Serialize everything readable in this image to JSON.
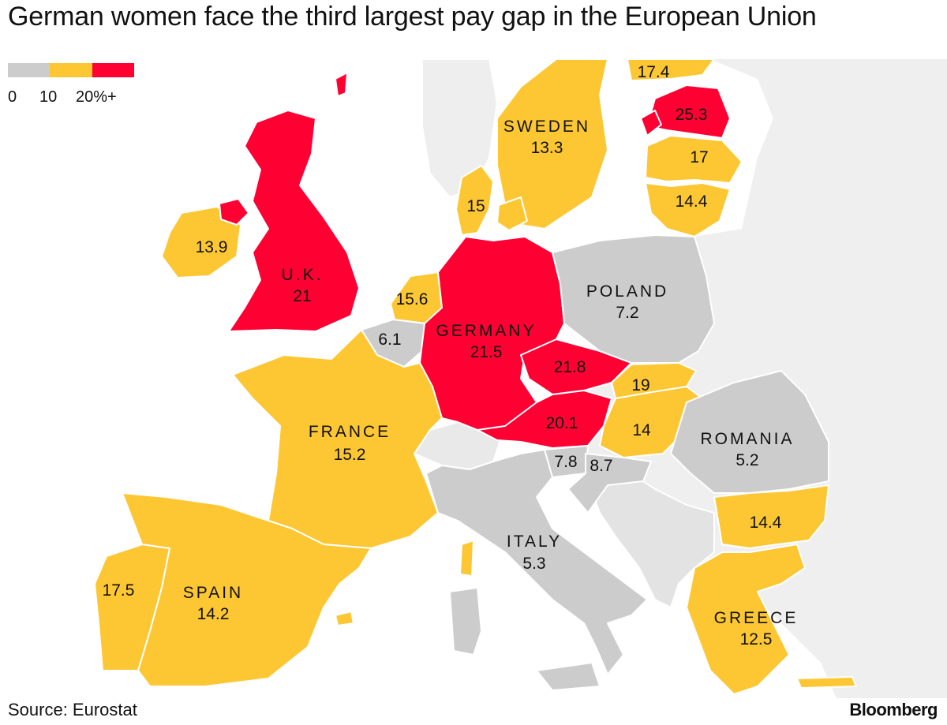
{
  "title": "German women face the third largest pay gap in the European Union",
  "legend": {
    "colors": [
      "#cccccc",
      "#fdc734",
      "#ff0033"
    ],
    "labels": [
      "0",
      "10",
      "20%+"
    ]
  },
  "map_colors": {
    "background": "#efefef",
    "low": "#cccccc",
    "mid": "#fdc734",
    "high": "#ff0033",
    "border": "#ffffff"
  },
  "countries": {
    "finland": {
      "value": "17.4"
    },
    "sweden": {
      "name": "SWEDEN",
      "value": "13.3"
    },
    "estonia": {
      "value": "25.3"
    },
    "latvia": {
      "value": "17"
    },
    "lithuania": {
      "value": "14.4"
    },
    "denmark": {
      "value": "15"
    },
    "ireland": {
      "value": "13.9"
    },
    "uk": {
      "name": "U.K.",
      "value": "21"
    },
    "netherlands": {
      "value": "15.6"
    },
    "belgium": {
      "value": "6.1"
    },
    "germany": {
      "name": "GERMANY",
      "value": "21.5"
    },
    "poland": {
      "name": "POLAND",
      "value": "7.2"
    },
    "czechia": {
      "value": "21.8"
    },
    "slovakia": {
      "value": "19"
    },
    "austria": {
      "value": "20.1"
    },
    "hungary": {
      "value": "14"
    },
    "romania": {
      "name": "ROMANIA",
      "value": "5.2"
    },
    "france": {
      "name": "FRANCE",
      "value": "15.2"
    },
    "slovenia": {
      "value": "7.8"
    },
    "croatia": {
      "value": "8.7"
    },
    "bulgaria": {
      "value": "14.4"
    },
    "italy": {
      "name": "ITALY",
      "value": "5.3"
    },
    "portugal": {
      "value": "17.5"
    },
    "spain": {
      "name": "SPAIN",
      "value": "14.2"
    },
    "greece": {
      "name": "GREECE",
      "value": "12.5"
    }
  },
  "source": "Source: Eurostat",
  "brand": "Bloomberg"
}
